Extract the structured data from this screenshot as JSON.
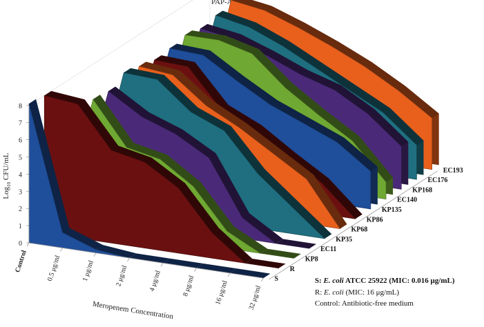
{
  "chart_data": {
    "type": "area",
    "title": "PAP-AUC",
    "xlabel": "Meropenem Concentration",
    "ylabel_main": "Log",
    "ylabel_sub": "10",
    "ylabel_rest": " CFU/mL",
    "ylim": [
      0,
      8
    ],
    "yticks": [
      "0",
      "1",
      "2",
      "3",
      "4",
      "5",
      "6",
      "7",
      "8"
    ],
    "categories": [
      "Control",
      "0.5 μg/ml",
      "1 μg/ml",
      "2 μg/ml",
      "4 μg/ml",
      "8 μg/ml",
      "16 μg/ml",
      "32 μg/ml"
    ],
    "series": [
      {
        "name": "S",
        "color": "#1f4e9a",
        "values": [
          8.1,
          0.9,
          0.2,
          0.0,
          0.0,
          0.0,
          0.0,
          0.0
        ]
      },
      {
        "name": "R",
        "color": "#6b1010",
        "values": [
          8.0,
          7.8,
          5.4,
          5.0,
          3.8,
          1.5,
          0.0,
          0.0
        ]
      },
      {
        "name": "KP8",
        "color": "#6fa832",
        "values": [
          0.0,
          7.5,
          5.0,
          4.6,
          3.3,
          1.0,
          0.0,
          0.0
        ]
      },
      {
        "name": "EC11",
        "color": "#4a2a78",
        "values": [
          0.0,
          7.4,
          6.2,
          5.5,
          4.4,
          1.2,
          0.0,
          0.0
        ]
      },
      {
        "name": "KP35",
        "color": "#1f6f80",
        "values": [
          0.0,
          7.9,
          7.8,
          6.2,
          5.4,
          3.2,
          1.6,
          0.0
        ]
      },
      {
        "name": "KP68",
        "color": "#e8601c",
        "values": [
          0.0,
          7.7,
          7.5,
          6.0,
          5.0,
          3.8,
          2.6,
          0.0
        ]
      },
      {
        "name": "KP86",
        "color": "#6b1010",
        "values": [
          0.0,
          7.5,
          7.4,
          5.2,
          4.3,
          3.0,
          1.8,
          0.0
        ]
      },
      {
        "name": "KP135",
        "color": "#1f4e9a",
        "values": [
          0.0,
          7.6,
          7.5,
          6.3,
          5.2,
          4.4,
          3.6,
          2.2
        ]
      },
      {
        "name": "EC140",
        "color": "#6fa832",
        "values": [
          0.0,
          7.8,
          7.8,
          7.3,
          5.6,
          4.3,
          3.1,
          1.0
        ]
      },
      {
        "name": "KP168",
        "color": "#4a2a78",
        "values": [
          0.0,
          7.6,
          7.3,
          6.6,
          5.8,
          5.2,
          4.1,
          2.5
        ]
      },
      {
        "name": "EC176",
        "color": "#1f6f80",
        "values": [
          0.0,
          7.8,
          7.4,
          6.6,
          5.6,
          4.6,
          3.6,
          2.0
        ]
      },
      {
        "name": "EC193",
        "color": "#e8601c",
        "values": [
          0.0,
          8.1,
          7.8,
          7.1,
          6.3,
          5.4,
          4.3,
          3.0
        ]
      }
    ],
    "grid": false,
    "legend_notes": [
      {
        "key": "S:",
        "pre": " ",
        "italic": "E. coli",
        "post": " ATCC 25922 (MIC: 0.016 μg/mL)",
        "bold": true
      },
      {
        "key": "R:",
        "pre": " ",
        "italic": "E. coli",
        "post": " (MIC: 16 μg/mL)",
        "bold": false
      },
      {
        "key": "Control:",
        "pre": " ",
        "italic": "",
        "post": "Antibiotic-free medium",
        "bold": false
      }
    ]
  }
}
